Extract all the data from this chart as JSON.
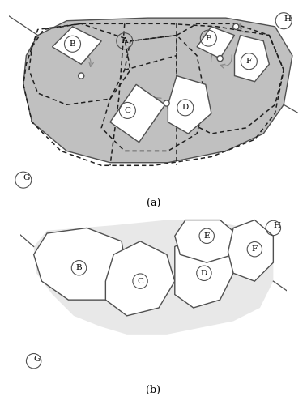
{
  "fig_width": 3.79,
  "fig_height": 5.0,
  "dpi": 100,
  "bg_color": "#ffffff",
  "gray_fill": "#c0c0c0",
  "light_gray_fill": "#e8e8e8",
  "white_fill": "#ffffff",
  "face_edge_color": "#505050",
  "dashed_color": "#202020",
  "label_A": "A",
  "label_B": "B",
  "label_C": "C",
  "label_D": "D",
  "label_E": "E",
  "label_F": "F",
  "label_G": "G",
  "label_H": "H",
  "caption_a": "(a)",
  "caption_b": "(b)"
}
